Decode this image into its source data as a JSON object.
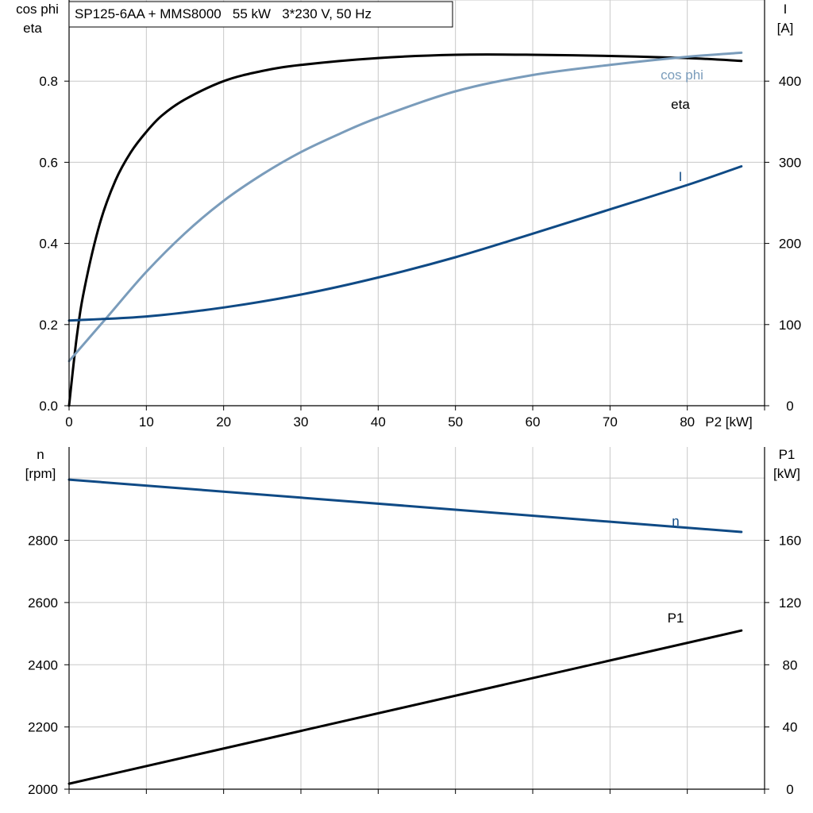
{
  "title": "SP125-6AA + MMS8000   55 kW   3*230 V, 50 Hz",
  "colors": {
    "eta": "#000000",
    "cosphi": "#7a9cbb",
    "current": "#0f4a85",
    "speed": "#0f4a85",
    "p1": "#000000",
    "grid": "#c8c8c8",
    "axis": "#000000"
  },
  "chart_data": [
    {
      "type": "line",
      "name": "top",
      "xlabel": "P2 [kW]",
      "xlim": [
        0,
        90
      ],
      "xticks": [
        0,
        10,
        20,
        30,
        40,
        50,
        60,
        70,
        80
      ],
      "ylabel_left": [
        "cos phi",
        "eta"
      ],
      "ylim_left": [
        0,
        1.0
      ],
      "yticks_left": [
        "0.0",
        "0.2",
        "0.4",
        "0.6",
        "0.8"
      ],
      "ylabel_right": [
        "I",
        "[A]"
      ],
      "ylim_right": [
        0,
        500
      ],
      "yticks_right": [
        "0",
        "100",
        "200",
        "300",
        "400"
      ],
      "grid": true,
      "series": [
        {
          "name": "eta",
          "axis": "left",
          "color_key": "eta",
          "x": [
            0,
            1,
            2,
            4,
            6,
            8,
            10,
            12,
            15,
            20,
            25,
            30,
            40,
            50,
            60,
            70,
            80,
            87
          ],
          "y": [
            0,
            0.17,
            0.29,
            0.45,
            0.555,
            0.625,
            0.675,
            0.715,
            0.755,
            0.8,
            0.825,
            0.84,
            0.857,
            0.865,
            0.865,
            0.862,
            0.857,
            0.85
          ]
        },
        {
          "name": "cos phi",
          "axis": "left",
          "color_key": "cosphi",
          "x": [
            0,
            5,
            10,
            15,
            20,
            25,
            30,
            35,
            40,
            50,
            60,
            70,
            80,
            87
          ],
          "y": [
            0.11,
            0.22,
            0.33,
            0.425,
            0.505,
            0.57,
            0.625,
            0.67,
            0.71,
            0.775,
            0.815,
            0.84,
            0.86,
            0.87
          ]
        },
        {
          "name": "I",
          "axis": "right",
          "color_key": "current",
          "x": [
            0,
            10,
            20,
            30,
            40,
            50,
            60,
            70,
            80,
            87
          ],
          "y": [
            105,
            110,
            121,
            137,
            158,
            183,
            212,
            242,
            272,
            295
          ]
        }
      ]
    },
    {
      "type": "line",
      "name": "bottom",
      "xlim": [
        0,
        90
      ],
      "ylabel_left": [
        "n",
        "[rpm]"
      ],
      "ylim_left": [
        2000,
        3100
      ],
      "yticks_left": [
        "2000",
        "2200",
        "2400",
        "2600",
        "2800"
      ],
      "ylabel_right": [
        "P1",
        "[kW]"
      ],
      "ylim_right": [
        0,
        220
      ],
      "yticks_right": [
        "0",
        "40",
        "80",
        "120",
        "160"
      ],
      "grid": true,
      "series": [
        {
          "name": "n",
          "axis": "left",
          "color_key": "speed",
          "x": [
            0,
            87
          ],
          "y": [
            2995,
            2827
          ]
        },
        {
          "name": "P1",
          "axis": "right",
          "color_key": "p1",
          "x": [
            0,
            87
          ],
          "y": [
            3.5,
            102
          ]
        }
      ]
    }
  ]
}
